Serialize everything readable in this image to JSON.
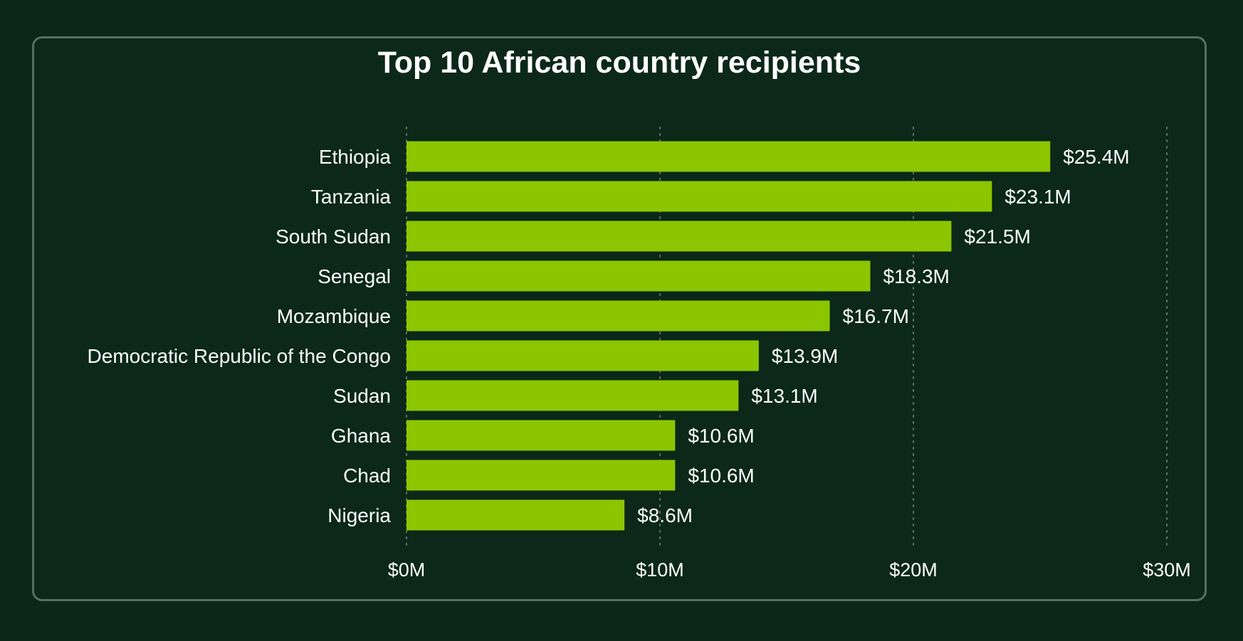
{
  "chart_data": {
    "type": "bar",
    "orientation": "horizontal",
    "title": "Top 10 African country recipients",
    "categories": [
      "Ethiopia",
      "Tanzania",
      "South Sudan",
      "Senegal",
      "Mozambique",
      "Democratic Republic of the Congo",
      "Sudan",
      "Ghana",
      "Chad",
      "Nigeria"
    ],
    "values": [
      25.4,
      23.1,
      21.5,
      18.3,
      16.7,
      13.9,
      13.1,
      10.6,
      10.6,
      8.6
    ],
    "value_labels": [
      "$25.4M",
      "$23.1M",
      "$21.5M",
      "$18.3M",
      "$16.7M",
      "$13.9M",
      "$13.1M",
      "$10.6M",
      "$10.6M",
      "$8.6M"
    ],
    "xlim": [
      0,
      30
    ],
    "xticks": [
      0,
      10,
      20,
      30
    ],
    "xtick_labels": [
      "$0M",
      "$10M",
      "$20M",
      "$30M"
    ],
    "xlabel": "",
    "ylabel": "",
    "grid": "vertical-dashed",
    "legend": "none",
    "colors": {
      "bar": "#8cc600",
      "background": "#0a2718",
      "card_border": "#56705f",
      "gridline": "#6f8577",
      "text": "#ffffff"
    }
  }
}
